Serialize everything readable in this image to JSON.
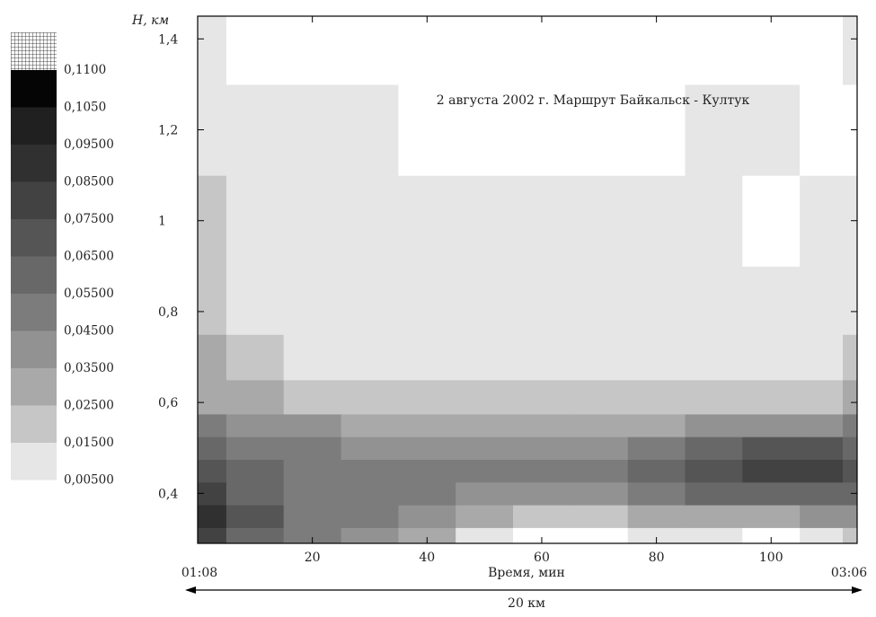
{
  "chart_data": {
    "type": "heatmap",
    "title": "2 августа 2002 г. Маршрут Байкальск - Култук",
    "xlabel": "Время, мин",
    "ylabel": "H, км",
    "x_start_label": "01:08",
    "x_end_label": "03:06",
    "distance_label": "20 км",
    "xlim": [
      0,
      115
    ],
    "ylim": [
      0.29,
      1.45
    ],
    "x_ticks": [
      "20",
      "40",
      "60",
      "80",
      "100"
    ],
    "y_ticks": [
      "0,4",
      "0,6",
      "0,8",
      "1",
      "1,2",
      "1,4"
    ],
    "x": [
      0,
      10,
      20,
      30,
      40,
      50,
      60,
      70,
      80,
      90,
      100,
      110,
      115
    ],
    "y": [
      0.3,
      0.35,
      0.4,
      0.45,
      0.5,
      0.55,
      0.6,
      0.7,
      0.8,
      1.0,
      1.2,
      1.4
    ],
    "z": [
      [
        0.085,
        0.065,
        0.055,
        0.045,
        0.035,
        0.015,
        0.005,
        0.005,
        0.015,
        0.015,
        0.005,
        0.015,
        0.025
      ],
      [
        0.095,
        0.075,
        0.055,
        0.055,
        0.045,
        0.035,
        0.025,
        0.025,
        0.035,
        0.035,
        0.035,
        0.045,
        0.045
      ],
      [
        0.085,
        0.065,
        0.055,
        0.055,
        0.055,
        0.045,
        0.045,
        0.045,
        0.055,
        0.065,
        0.065,
        0.065,
        0.065
      ],
      [
        0.075,
        0.065,
        0.055,
        0.055,
        0.055,
        0.055,
        0.055,
        0.055,
        0.065,
        0.075,
        0.085,
        0.085,
        0.075
      ],
      [
        0.065,
        0.055,
        0.055,
        0.045,
        0.045,
        0.045,
        0.045,
        0.045,
        0.055,
        0.065,
        0.075,
        0.075,
        0.065
      ],
      [
        0.055,
        0.045,
        0.045,
        0.035,
        0.035,
        0.035,
        0.035,
        0.035,
        0.035,
        0.045,
        0.045,
        0.045,
        0.055
      ],
      [
        0.035,
        0.035,
        0.025,
        0.025,
        0.025,
        0.025,
        0.025,
        0.025,
        0.025,
        0.025,
        0.025,
        0.025,
        0.035
      ],
      [
        0.035,
        0.025,
        0.015,
        0.015,
        0.015,
        0.015,
        0.015,
        0.015,
        0.015,
        0.015,
        0.015,
        0.015,
        0.025
      ],
      [
        0.025,
        0.015,
        0.015,
        0.015,
        0.015,
        0.015,
        0.015,
        0.015,
        0.015,
        0.015,
        0.015,
        0.015,
        0.015
      ],
      [
        0.025,
        0.015,
        0.015,
        0.015,
        0.015,
        0.015,
        0.015,
        0.015,
        0.015,
        0.015,
        0.005,
        0.015,
        0.015
      ],
      [
        0.015,
        0.015,
        0.015,
        0.015,
        0.005,
        0.005,
        0.005,
        0.005,
        0.005,
        0.015,
        0.015,
        0.005,
        0.005
      ],
      [
        0.015,
        0.005,
        0.005,
        0.005,
        0.005,
        0.005,
        0.005,
        0.005,
        0.005,
        0.005,
        0.005,
        0.005,
        0.015
      ]
    ],
    "legend": {
      "levels": [
        "0,1100",
        "0,1050",
        "0,09500",
        "0,08500",
        "0,07500",
        "0,06500",
        "0,05500",
        "0,04500",
        "0,03500",
        "0,02500",
        "0,01500",
        "0,00500"
      ],
      "colors": [
        "#050505",
        "#202020",
        "#303030",
        "#424242",
        "#555555",
        "#686868",
        "#7c7c7c",
        "#929292",
        "#a9a9a9",
        "#c6c6c6",
        "#e6e6e6",
        "#ffffff"
      ],
      "top_swatch_pattern": "grid-hatch"
    },
    "grid": false,
    "legend_position": "left"
  }
}
